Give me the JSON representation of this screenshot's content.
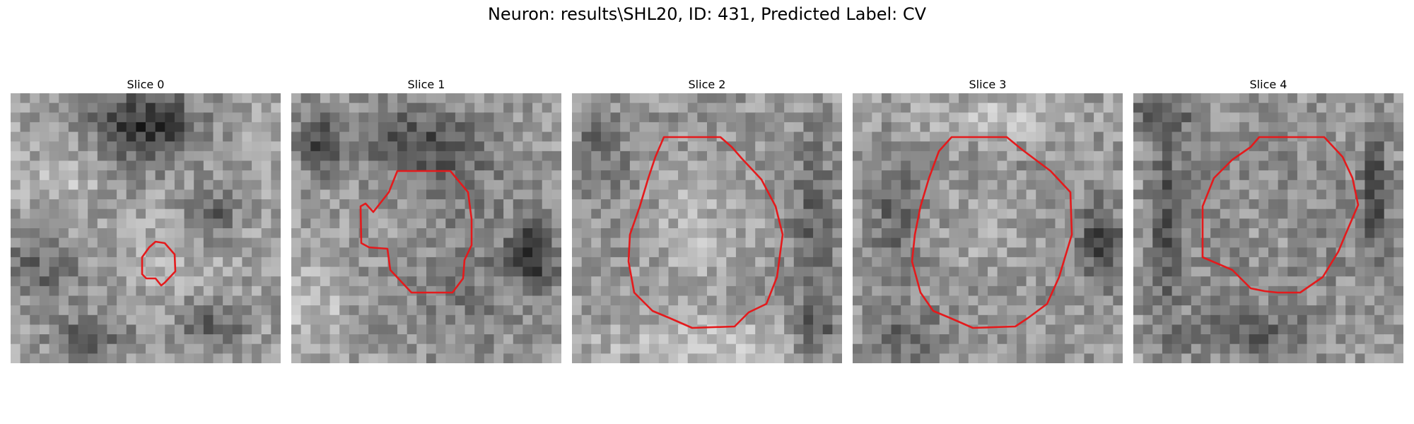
{
  "figure": {
    "title": "Neuron: results\\SHL20, ID: 431, Predicted Label: CV",
    "contour_color": "#e41a1c"
  },
  "slices": [
    {
      "title": "Slice 0"
    },
    {
      "title": "Slice 1"
    },
    {
      "title": "Slice 2"
    },
    {
      "title": "Slice 3"
    },
    {
      "title": "Slice 4"
    }
  ]
}
